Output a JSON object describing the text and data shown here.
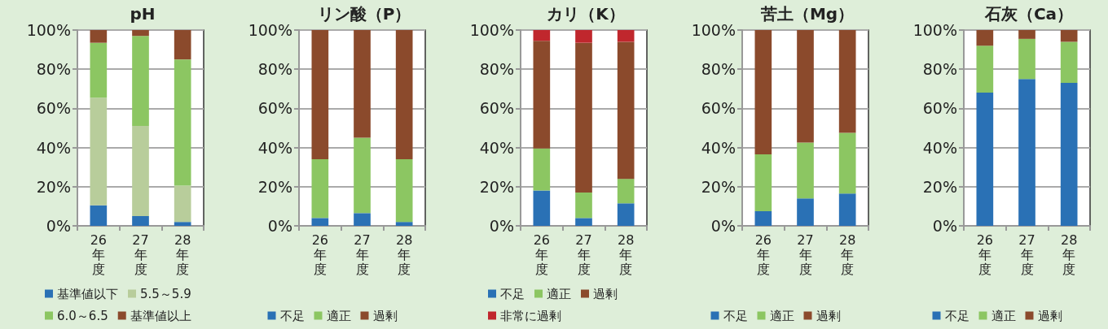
{
  "chart_data": [
    {
      "type": "bar",
      "title": "pH",
      "stacked": true,
      "categories": [
        "26年度",
        "27年度",
        "28年度"
      ],
      "legend": "bottom",
      "grid": "y",
      "ylim": [
        0,
        100
      ],
      "yticks": [
        {
          "value": 0,
          "label": "0%"
        },
        {
          "value": 20,
          "label": "20%"
        },
        {
          "value": 40,
          "label": "40%"
        },
        {
          "value": 60,
          "label": "60%"
        },
        {
          "value": 80,
          "label": "80%"
        },
        {
          "value": 100,
          "label": "100%"
        }
      ],
      "series": [
        {
          "name": "基準値以下",
          "color": "#2a71b5",
          "values": [
            10.5,
            5,
            2
          ]
        },
        {
          "name": "5.5～5.9",
          "color": "#b8cd9b",
          "values": [
            55,
            46,
            18.5
          ]
        },
        {
          "name": "6.0～6.5",
          "color": "#8cc662",
          "values": [
            28,
            46,
            64.5
          ]
        },
        {
          "name": "基準値以上",
          "color": "#8b4a2c",
          "values": [
            6.5,
            3,
            15
          ]
        }
      ]
    },
    {
      "type": "bar",
      "title": "リン酸（P）",
      "stacked": true,
      "categories": [
        "26年度",
        "27年度",
        "28年度"
      ],
      "legend": "bottom",
      "grid": "y",
      "ylim": [
        0,
        100
      ],
      "yticks": [
        {
          "value": 0,
          "label": "0%"
        },
        {
          "value": 20,
          "label": "20%"
        },
        {
          "value": 40,
          "label": "40%"
        },
        {
          "value": 60,
          "label": "60%"
        },
        {
          "value": 80,
          "label": "80%"
        },
        {
          "value": 100,
          "label": "100%"
        }
      ],
      "series": [
        {
          "name": "不足",
          "color": "#2a71b5",
          "values": [
            4,
            6.5,
            2
          ]
        },
        {
          "name": "適正",
          "color": "#8cc662",
          "values": [
            30,
            38.5,
            32
          ]
        },
        {
          "name": "過剰",
          "color": "#8b4a2c",
          "values": [
            66,
            55,
            66
          ]
        }
      ]
    },
    {
      "type": "bar",
      "title": "カリ（K）",
      "stacked": true,
      "categories": [
        "26年度",
        "27年度",
        "28年度"
      ],
      "legend": "bottom",
      "grid": "y",
      "ylim": [
        0,
        100
      ],
      "yticks": [
        {
          "value": 0,
          "label": "0%"
        },
        {
          "value": 20,
          "label": "20%"
        },
        {
          "value": 40,
          "label": "40%"
        },
        {
          "value": 60,
          "label": "60%"
        },
        {
          "value": 80,
          "label": "80%"
        },
        {
          "value": 100,
          "label": "100%"
        }
      ],
      "series": [
        {
          "name": "不足",
          "color": "#2a71b5",
          "values": [
            18,
            4,
            11.5
          ]
        },
        {
          "name": "適正",
          "color": "#8cc662",
          "values": [
            21.5,
            13,
            12.5
          ]
        },
        {
          "name": "過剰",
          "color": "#8b4a2c",
          "values": [
            55,
            76.5,
            70
          ]
        },
        {
          "name": "非常に過剰",
          "color": "#c0272d",
          "values": [
            5.5,
            6.5,
            6
          ]
        }
      ]
    },
    {
      "type": "bar",
      "title": "苦土（Mg）",
      "stacked": true,
      "categories": [
        "26年度",
        "27年度",
        "28年度"
      ],
      "legend": "bottom",
      "grid": "y",
      "ylim": [
        0,
        100
      ],
      "yticks": [
        {
          "value": 0,
          "label": "0%"
        },
        {
          "value": 20,
          "label": "20%"
        },
        {
          "value": 40,
          "label": "40%"
        },
        {
          "value": 60,
          "label": "60%"
        },
        {
          "value": 80,
          "label": "80%"
        },
        {
          "value": 100,
          "label": "100%"
        }
      ],
      "series": [
        {
          "name": "不足",
          "color": "#2a71b5",
          "values": [
            7.5,
            14,
            16.5
          ]
        },
        {
          "name": "適正",
          "color": "#8cc662",
          "values": [
            29,
            28.5,
            31
          ]
        },
        {
          "name": "過剰",
          "color": "#8b4a2c",
          "values": [
            63.5,
            57.5,
            52.5
          ]
        }
      ]
    },
    {
      "type": "bar",
      "title": "石灰（Ca）",
      "stacked": true,
      "categories": [
        "26年度",
        "27年度",
        "28年度"
      ],
      "legend": "bottom",
      "grid": "y",
      "ylim": [
        0,
        100
      ],
      "yticks": [
        {
          "value": 0,
          "label": "0%"
        },
        {
          "value": 20,
          "label": "20%"
        },
        {
          "value": 40,
          "label": "40%"
        },
        {
          "value": 60,
          "label": "60%"
        },
        {
          "value": 80,
          "label": "80%"
        },
        {
          "value": 100,
          "label": "100%"
        }
      ],
      "series": [
        {
          "name": "不足",
          "color": "#2a71b5",
          "values": [
            68,
            75,
            73
          ]
        },
        {
          "name": "適正",
          "color": "#8cc662",
          "values": [
            24,
            20.5,
            21
          ]
        },
        {
          "name": "過剰",
          "color": "#8b4a2c",
          "values": [
            8,
            4.5,
            6
          ]
        }
      ]
    }
  ]
}
